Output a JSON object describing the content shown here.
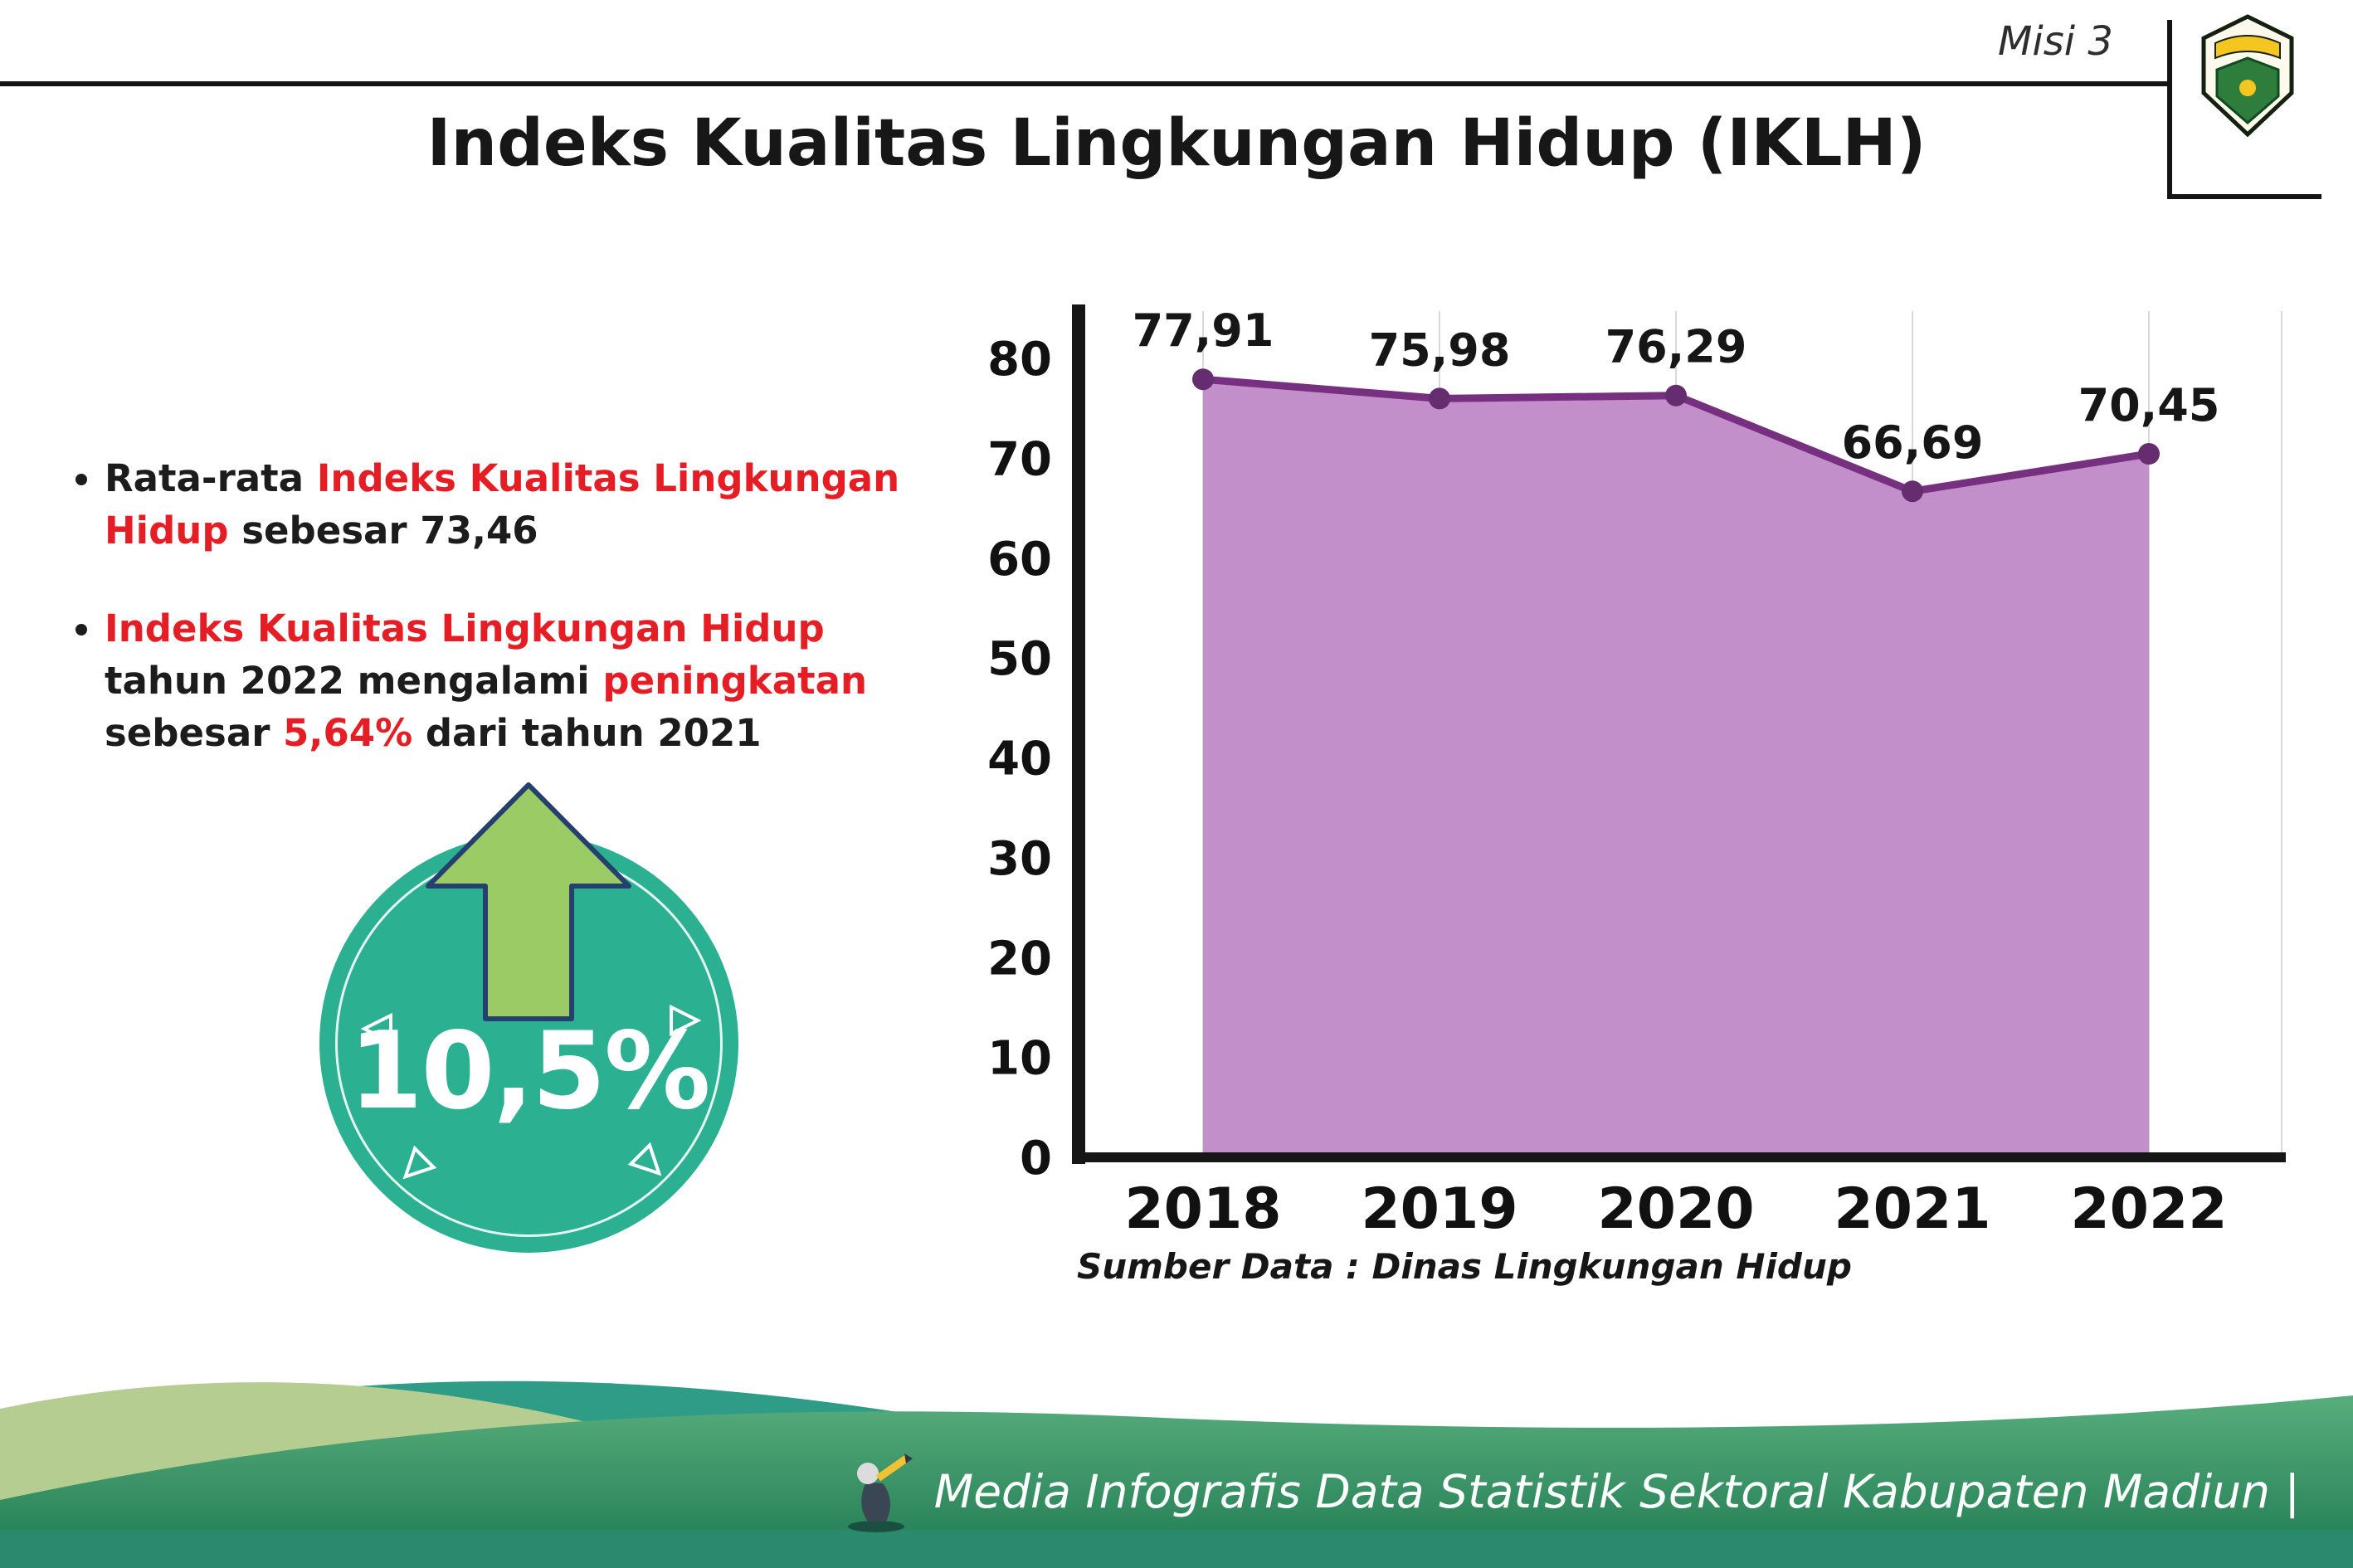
{
  "header": {
    "misi_label": "Misi 3",
    "title": "Indeks Kualitas Lingkungan Hidup (IKLH)"
  },
  "bullets": [
    {
      "segments": [
        {
          "text": "Rata-rata ",
          "red": false
        },
        {
          "text": "Indeks Kualitas Lingkungan Hidup",
          "red": true
        },
        {
          "text": " sebesar 73,46",
          "red": false
        }
      ]
    },
    {
      "segments": [
        {
          "text": "Indeks Kualitas Lingkungan Hidup",
          "red": true
        },
        {
          "text": " tahun 2022 mengalami ",
          "red": false
        },
        {
          "text": "peningkatan",
          "red": true
        },
        {
          "text": " sebesar ",
          "red": false
        },
        {
          "text": "5,64%",
          "red": true
        },
        {
          "text": " dari tahun 2021",
          "red": false
        }
      ]
    }
  ],
  "highlight": {
    "value": "10,5%"
  },
  "chart_data": {
    "type": "area",
    "categories": [
      "2018",
      "2019",
      "2020",
      "2021",
      "2022"
    ],
    "values": [
      77.91,
      75.98,
      76.29,
      66.69,
      70.45
    ],
    "value_labels": [
      "77,91",
      "75,98",
      "76,29",
      "66,69",
      "70,45"
    ],
    "title": "",
    "xlabel": "",
    "ylabel": "",
    "ylim": [
      0,
      80
    ],
    "yticks": [
      0,
      10,
      20,
      30,
      40,
      50,
      60,
      70,
      80
    ],
    "grid": true,
    "legend_position": "none",
    "source_label": "Sumber Data : Dinas Lingkungan Hidup",
    "colors": {
      "area_fill": "#c28fca",
      "line": "#76307f",
      "point": "#652c6f",
      "axis": "#161616",
      "grid": "#d9d9d9",
      "label": "#161616"
    }
  },
  "footer": {
    "credit": "Media Infografis Data Statistik Sektoral Kabupaten Madiun |"
  },
  "icons": {
    "logo": "kabupaten-madiun-logo",
    "arrow": "up-arrow-icon",
    "mascot": "mascot-icon"
  },
  "colors": {
    "accent_red": "#e51e25",
    "circle_teal": "#2bb191",
    "arrow_green": "#9bcb64",
    "arrow_outline": "#25406e",
    "footer_green_top": "#58ad7c",
    "footer_green_bottom": "#1e7a51",
    "footer_teal_wave": "#2f9c87",
    "footer_sage_wave": "#b6cd92",
    "footer_strip": "#2b8a6e"
  }
}
